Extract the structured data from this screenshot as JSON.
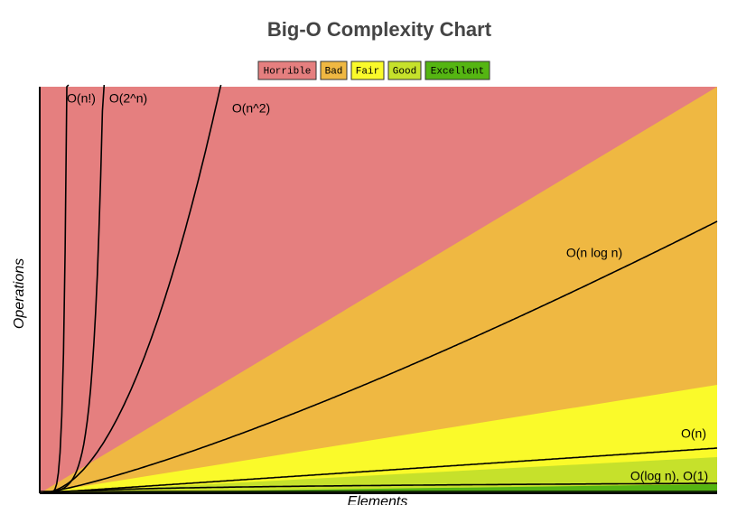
{
  "title": "Big-O Complexity Chart",
  "legend": [
    {
      "label": "Horrible",
      "color": "#e57f7f"
    },
    {
      "label": "Bad",
      "color": "#efb842"
    },
    {
      "label": "Fair",
      "color": "#fafa2a"
    },
    {
      "label": "Good",
      "color": "#c6e12b"
    },
    {
      "label": "Excellent",
      "color": "#55b512"
    }
  ],
  "y_axis_label": "Operations",
  "x_axis_label": "Elements",
  "curves": [
    {
      "label": "O(n!)"
    },
    {
      "label": "O(2^n)"
    },
    {
      "label": "O(n^2)"
    },
    {
      "label": "O(n log n)"
    },
    {
      "label": "O(n)"
    },
    {
      "label": "O(log n), O(1)"
    }
  ]
}
